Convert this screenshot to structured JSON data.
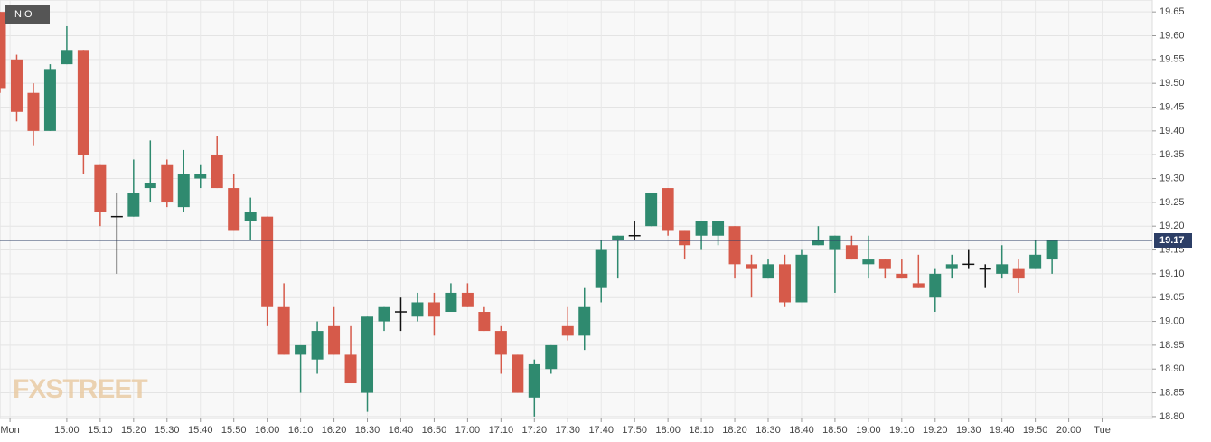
{
  "chart_data": {
    "type": "candlestick",
    "legend": "NIO",
    "watermark": "FXSTREET",
    "x": [
      880,
      885,
      890,
      895,
      900,
      905,
      910,
      915,
      920,
      925,
      930,
      935,
      940,
      945,
      950,
      955,
      960,
      965,
      970,
      975,
      980,
      985,
      990,
      995,
      1000,
      1005,
      1010,
      1015,
      1020,
      1025,
      1030,
      1035,
      1040,
      1045,
      1050,
      1055,
      1060,
      1065,
      1070,
      1075,
      1080,
      1085,
      1090,
      1095,
      1100,
      1105,
      1110,
      1115,
      1120,
      1125,
      1130,
      1135,
      1140,
      1145,
      1150,
      1155,
      1160,
      1165,
      1170,
      1175,
      1180,
      1185,
      1190,
      1195
    ],
    "open": [
      19.65,
      19.55,
      19.48,
      19.4,
      19.54,
      19.57,
      19.33,
      19.22,
      19.22,
      19.28,
      19.33,
      19.24,
      19.3,
      19.35,
      19.28,
      19.21,
      19.22,
      19.03,
      18.93,
      18.92,
      18.99,
      18.93,
      18.85,
      19.0,
      19.02,
      19.01,
      19.04,
      19.02,
      19.06,
      19.02,
      18.98,
      18.93,
      18.84,
      18.9,
      18.99,
      18.97,
      19.07,
      19.17,
      19.18,
      19.2,
      19.28,
      19.19,
      19.18,
      19.18,
      19.2,
      19.12,
      19.09,
      19.12,
      19.04,
      19.16,
      19.15,
      19.16,
      19.12,
      19.13,
      19.1,
      19.08,
      19.05,
      19.11,
      19.12,
      19.11,
      19.1,
      19.11,
      19.11,
      19.13
    ],
    "high": [
      19.65,
      19.56,
      19.5,
      19.54,
      19.62,
      19.57,
      19.33,
      19.27,
      19.34,
      19.38,
      19.34,
      19.36,
      19.33,
      19.39,
      19.31,
      19.26,
      19.22,
      19.08,
      18.95,
      19.0,
      19.03,
      18.99,
      19.01,
      19.03,
      19.05,
      19.06,
      19.06,
      19.08,
      19.08,
      19.03,
      18.99,
      18.93,
      18.92,
      18.95,
      19.03,
      19.07,
      19.17,
      19.18,
      19.21,
      19.27,
      19.28,
      19.19,
      19.21,
      19.21,
      19.2,
      19.14,
      19.13,
      19.14,
      19.15,
      19.2,
      19.18,
      19.18,
      19.18,
      19.13,
      19.13,
      19.14,
      19.11,
      19.14,
      19.15,
      19.12,
      19.16,
      19.13,
      19.17,
      19.17
    ],
    "low": [
      19.48,
      19.42,
      19.37,
      19.4,
      19.54,
      19.31,
      19.2,
      19.1,
      19.22,
      19.25,
      19.24,
      19.23,
      19.28,
      19.28,
      19.19,
      19.17,
      18.99,
      18.93,
      18.85,
      18.89,
      18.93,
      18.87,
      18.81,
      18.98,
      18.98,
      19.0,
      18.97,
      19.02,
      19.03,
      18.98,
      18.89,
      18.85,
      18.8,
      18.89,
      18.96,
      18.94,
      19.04,
      19.09,
      19.17,
      19.2,
      19.18,
      19.13,
      19.15,
      19.16,
      19.09,
      19.05,
      19.09,
      19.03,
      19.04,
      19.16,
      19.06,
      19.13,
      19.09,
      19.09,
      19.09,
      19.07,
      19.02,
      19.09,
      19.11,
      19.07,
      19.09,
      19.06,
      19.11,
      19.1
    ],
    "close": [
      19.49,
      19.44,
      19.4,
      19.53,
      19.57,
      19.35,
      19.23,
      19.22,
      19.27,
      19.29,
      19.25,
      19.31,
      19.31,
      19.28,
      19.19,
      19.23,
      19.03,
      18.93,
      18.95,
      18.98,
      18.93,
      18.87,
      19.01,
      19.03,
      19.02,
      19.04,
      19.01,
      19.06,
      19.03,
      18.98,
      18.93,
      18.85,
      18.91,
      18.95,
      18.97,
      19.03,
      19.15,
      19.18,
      19.18,
      19.27,
      19.19,
      19.16,
      19.21,
      19.21,
      19.12,
      19.11,
      19.12,
      19.04,
      19.14,
      19.17,
      19.18,
      19.13,
      19.13,
      19.11,
      19.09,
      19.07,
      19.1,
      19.12,
      19.12,
      19.11,
      19.12,
      19.09,
      19.14,
      19.17
    ],
    "up_color": "#2f8a6f",
    "down_color": "#d65a4a",
    "doji_color": "#111111",
    "last_price": 19.17,
    "last_price_color": "#2c3e66",
    "xlim": [
      880,
      1225
    ],
    "xticks": [
      {
        "value": 883,
        "label": "Mon"
      },
      {
        "value": 900,
        "label": "15:00"
      },
      {
        "value": 910,
        "label": "15:10"
      },
      {
        "value": 920,
        "label": "15:20"
      },
      {
        "value": 930,
        "label": "15:30"
      },
      {
        "value": 940,
        "label": "15:40"
      },
      {
        "value": 950,
        "label": "15:50"
      },
      {
        "value": 960,
        "label": "16:00"
      },
      {
        "value": 970,
        "label": "16:10"
      },
      {
        "value": 980,
        "label": "16:20"
      },
      {
        "value": 990,
        "label": "16:30"
      },
      {
        "value": 1000,
        "label": "16:40"
      },
      {
        "value": 1010,
        "label": "16:50"
      },
      {
        "value": 1020,
        "label": "17:00"
      },
      {
        "value": 1030,
        "label": "17:10"
      },
      {
        "value": 1040,
        "label": "17:20"
      },
      {
        "value": 1050,
        "label": "17:30"
      },
      {
        "value": 1060,
        "label": "17:40"
      },
      {
        "value": 1070,
        "label": "17:50"
      },
      {
        "value": 1080,
        "label": "18:00"
      },
      {
        "value": 1090,
        "label": "18:10"
      },
      {
        "value": 1100,
        "label": "18:20"
      },
      {
        "value": 1110,
        "label": "18:30"
      },
      {
        "value": 1120,
        "label": "18:40"
      },
      {
        "value": 1130,
        "label": "18:50"
      },
      {
        "value": 1140,
        "label": "19:00"
      },
      {
        "value": 1150,
        "label": "19:10"
      },
      {
        "value": 1160,
        "label": "19:20"
      },
      {
        "value": 1170,
        "label": "19:30"
      },
      {
        "value": 1180,
        "label": "19:40"
      },
      {
        "value": 1190,
        "label": "19:50"
      },
      {
        "value": 1200,
        "label": "20:00"
      },
      {
        "value": 1210,
        "label": "Tue"
      }
    ],
    "ylim": [
      18.796,
      19.675
    ],
    "yticks": [
      {
        "value": 18.8,
        "label": "18.80"
      },
      {
        "value": 18.85,
        "label": "18.85"
      },
      {
        "value": 18.9,
        "label": "18.90"
      },
      {
        "value": 18.95,
        "label": "18.95"
      },
      {
        "value": 19.0,
        "label": "19.00"
      },
      {
        "value": 19.05,
        "label": "19.05"
      },
      {
        "value": 19.1,
        "label": "19.10"
      },
      {
        "value": 19.15,
        "label": "19.15"
      },
      {
        "value": 19.2,
        "label": "19.20"
      },
      {
        "value": 19.25,
        "label": "19.25"
      },
      {
        "value": 19.3,
        "label": "19.30"
      },
      {
        "value": 19.35,
        "label": "19.35"
      },
      {
        "value": 19.4,
        "label": "19.40"
      },
      {
        "value": 19.45,
        "label": "19.45"
      },
      {
        "value": 19.5,
        "label": "19.50"
      },
      {
        "value": 19.55,
        "label": "19.55"
      },
      {
        "value": 19.6,
        "label": "19.60"
      },
      {
        "value": 19.65,
        "label": "19.65"
      }
    ],
    "grid": true
  }
}
